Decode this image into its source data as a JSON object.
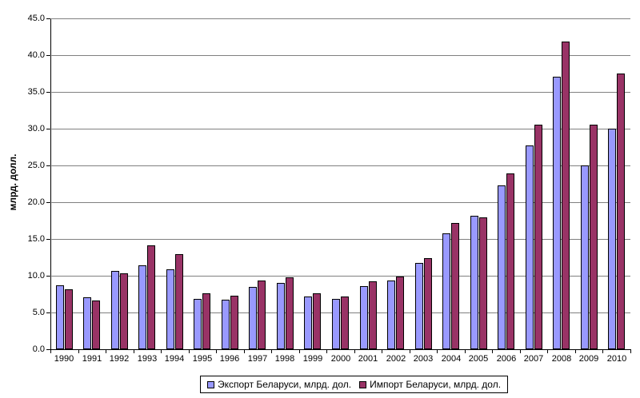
{
  "chart_data": {
    "type": "bar",
    "title": "",
    "ylabel": "млрд. долл.",
    "xlabel": "",
    "ylim": [
      0,
      45
    ],
    "ytick_step": 5,
    "ytick_labels": [
      "0.0",
      "5.0",
      "10.0",
      "15.0",
      "20.0",
      "25.0",
      "30.0",
      "35.0",
      "40.0",
      "45.0"
    ],
    "grid": true,
    "legend_position": "bottom-center",
    "categories": [
      "1990",
      "1991",
      "1992",
      "1993",
      "1994",
      "1995",
      "1996",
      "1997",
      "1998",
      "1999",
      "2000",
      "2001",
      "2002",
      "2003",
      "2004",
      "2005",
      "2006",
      "2007",
      "2008",
      "2009",
      "2010"
    ],
    "series": [
      {
        "name": "Экспорт Беларуси, млрд. дол.",
        "color": "#9999FF",
        "values": [
          8.7,
          7.1,
          10.6,
          11.4,
          10.9,
          6.9,
          6.7,
          8.5,
          9.0,
          7.2,
          6.9,
          8.6,
          9.4,
          11.7,
          15.8,
          18.2,
          22.3,
          27.7,
          37.1,
          25.0,
          30.0
        ]
      },
      {
        "name": "Импорт Беларуси, млрд. дол.",
        "color": "#993366",
        "values": [
          8.2,
          6.6,
          10.3,
          14.1,
          12.9,
          7.6,
          7.3,
          9.3,
          9.8,
          7.6,
          7.2,
          9.2,
          9.9,
          12.4,
          17.2,
          17.9,
          23.9,
          30.5,
          41.8,
          30.5,
          37.5
        ]
      }
    ],
    "colors": {
      "gridline": "#808080",
      "axis": "#000000",
      "background": "#FFFFFF",
      "bar_border": "#000000"
    }
  }
}
